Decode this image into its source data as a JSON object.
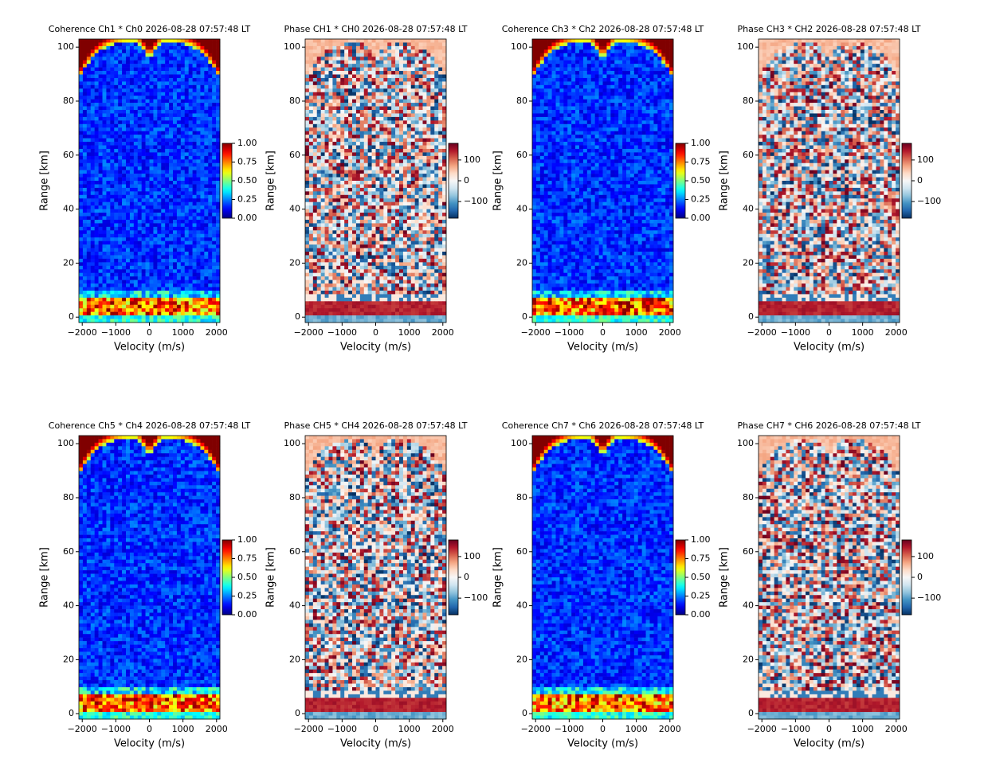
{
  "chart_data": [
    {
      "type": "heatmap",
      "title": "Coherence Ch1 * Ch0 2026-08-28 07:57:48 LT",
      "xlabel": "Velocity (m/s)",
      "ylabel": "Range [km]",
      "colormap": "jet",
      "xlim": [
        -2100,
        2100
      ],
      "xticks": [
        {
          "value": -2000,
          "label": "−2000"
        },
        {
          "value": -1000,
          "label": "−1000"
        },
        0,
        1000,
        2000
      ],
      "ylim": [
        -2,
        103
      ],
      "yticks": [
        0,
        20,
        40,
        60,
        80,
        100
      ],
      "clim": [
        0,
        1
      ],
      "cticks": [
        {
          "value": 0,
          "label": "0.00"
        },
        {
          "value": 0.25,
          "label": "0.25"
        },
        {
          "value": 0.5,
          "label": "0.50"
        },
        {
          "value": 0.75,
          "label": "0.75"
        },
        {
          "value": 1,
          "label": "1.00"
        }
      ]
    },
    {
      "type": "heatmap",
      "title": "Phase CH1 * CH0 2026-08-28 07:57:48 LT",
      "xlabel": "Velocity (m/s)",
      "ylabel": "Range [km]",
      "colormap": "RdBu_r",
      "xlim": [
        -2100,
        2100
      ],
      "xticks": [
        {
          "value": -2000,
          "label": "−2000"
        },
        {
          "value": -1000,
          "label": "−1000"
        },
        0,
        1000,
        2000
      ],
      "ylim": [
        -2,
        103
      ],
      "yticks": [
        0,
        20,
        40,
        60,
        80,
        100
      ],
      "clim": [
        -180,
        180
      ],
      "cticks": [
        {
          "value": -100,
          "label": "−100"
        },
        0,
        100
      ]
    },
    {
      "type": "heatmap",
      "title": "Coherence Ch3 * Ch2 2026-08-28 07:57:48 LT",
      "xlabel": "Velocity (m/s)",
      "ylabel": "Range [km]",
      "colormap": "jet",
      "xlim": [
        -2100,
        2100
      ],
      "xticks": [
        {
          "value": -2000,
          "label": "−2000"
        },
        {
          "value": -1000,
          "label": "−1000"
        },
        0,
        1000,
        2000
      ],
      "ylim": [
        -2,
        103
      ],
      "yticks": [
        0,
        20,
        40,
        60,
        80,
        100
      ],
      "clim": [
        0,
        1
      ],
      "cticks": [
        {
          "value": 0,
          "label": "0.00"
        },
        {
          "value": 0.25,
          "label": "0.25"
        },
        {
          "value": 0.5,
          "label": "0.50"
        },
        {
          "value": 0.75,
          "label": "0.75"
        },
        {
          "value": 1,
          "label": "1.00"
        }
      ]
    },
    {
      "type": "heatmap",
      "title": "Phase CH3 * CH2 2026-08-28 07:57:48 LT",
      "xlabel": "Velocity (m/s)",
      "ylabel": "Range [km]",
      "colormap": "RdBu_r",
      "xlim": [
        -2100,
        2100
      ],
      "xticks": [
        {
          "value": -2000,
          "label": "−2000"
        },
        {
          "value": -1000,
          "label": "−1000"
        },
        0,
        1000,
        2000
      ],
      "ylim": [
        -2,
        103
      ],
      "yticks": [
        0,
        20,
        40,
        60,
        80,
        100
      ],
      "clim": [
        -180,
        180
      ],
      "cticks": [
        {
          "value": -100,
          "label": "−100"
        },
        0,
        100
      ]
    },
    {
      "type": "heatmap",
      "title": "Coherence Ch5 * Ch4 2026-08-28 07:57:48 LT",
      "xlabel": "Velocity (m/s)",
      "ylabel": "Range [km]",
      "colormap": "jet",
      "xlim": [
        -2100,
        2100
      ],
      "xticks": [
        {
          "value": -2000,
          "label": "−2000"
        },
        {
          "value": -1000,
          "label": "−1000"
        },
        0,
        1000,
        2000
      ],
      "ylim": [
        -2,
        103
      ],
      "yticks": [
        0,
        20,
        40,
        60,
        80,
        100
      ],
      "clim": [
        0,
        1
      ],
      "cticks": [
        {
          "value": 0,
          "label": "0.00"
        },
        {
          "value": 0.25,
          "label": "0.25"
        },
        {
          "value": 0.5,
          "label": "0.50"
        },
        {
          "value": 0.75,
          "label": "0.75"
        },
        {
          "value": 1,
          "label": "1.00"
        }
      ]
    },
    {
      "type": "heatmap",
      "title": "Phase CH5 * CH4 2026-08-28 07:57:48 LT",
      "xlabel": "Velocity (m/s)",
      "ylabel": "Range [km]",
      "colormap": "RdBu_r",
      "xlim": [
        -2100,
        2100
      ],
      "xticks": [
        {
          "value": -2000,
          "label": "−2000"
        },
        {
          "value": -1000,
          "label": "−1000"
        },
        0,
        1000,
        2000
      ],
      "ylim": [
        -2,
        103
      ],
      "yticks": [
        0,
        20,
        40,
        60,
        80,
        100
      ],
      "clim": [
        -180,
        180
      ],
      "cticks": [
        {
          "value": -100,
          "label": "−100"
        },
        0,
        100
      ]
    },
    {
      "type": "heatmap",
      "title": "Coherence Ch7 * Ch6 2026-08-28 07:57:48 LT",
      "xlabel": "Velocity (m/s)",
      "ylabel": "Range [km]",
      "colormap": "jet",
      "xlim": [
        -2100,
        2100
      ],
      "xticks": [
        {
          "value": -2000,
          "label": "−2000"
        },
        {
          "value": -1000,
          "label": "−1000"
        },
        0,
        1000,
        2000
      ],
      "ylim": [
        -2,
        103
      ],
      "yticks": [
        0,
        20,
        40,
        60,
        80,
        100
      ],
      "clim": [
        0,
        1
      ],
      "cticks": [
        {
          "value": 0,
          "label": "0.00"
        },
        {
          "value": 0.25,
          "label": "0.25"
        },
        {
          "value": 0.5,
          "label": "0.50"
        },
        {
          "value": 0.75,
          "label": "0.75"
        },
        {
          "value": 1,
          "label": "1.00"
        }
      ]
    },
    {
      "type": "heatmap",
      "title": "Phase CH7 * CH6 2026-08-28 07:57:48 LT",
      "xlabel": "Velocity (m/s)",
      "ylabel": "Range [km]",
      "colormap": "RdBu_r",
      "xlim": [
        -2100,
        2100
      ],
      "xticks": [
        {
          "value": -2000,
          "label": "−2000"
        },
        {
          "value": -1000,
          "label": "−1000"
        },
        0,
        1000,
        2000
      ],
      "ylim": [
        -2,
        103
      ],
      "yticks": [
        0,
        20,
        40,
        60,
        80,
        100
      ],
      "clim": [
        -180,
        180
      ],
      "cticks": [
        {
          "value": -100,
          "label": "−100"
        },
        0,
        100
      ]
    }
  ]
}
